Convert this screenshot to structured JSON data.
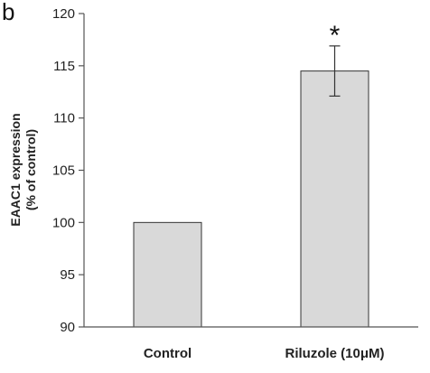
{
  "panel_label": "b",
  "chart_data": {
    "type": "bar",
    "categories": [
      "Control",
      "Riluzole (10μM)"
    ],
    "values": [
      100,
      114.5
    ],
    "errors": [
      null,
      2.4
    ],
    "annotations": [
      "",
      "*"
    ],
    "ylabel_line1": "EAAC1 expression",
    "ylabel_line2": "(% of control)",
    "ylim": [
      90,
      120
    ],
    "yticks": [
      "90",
      "95",
      "100",
      "105",
      "110",
      "115",
      "120"
    ],
    "grid": false,
    "bar_color": "#d9d9d9",
    "bar_edge_color": "#333333"
  }
}
